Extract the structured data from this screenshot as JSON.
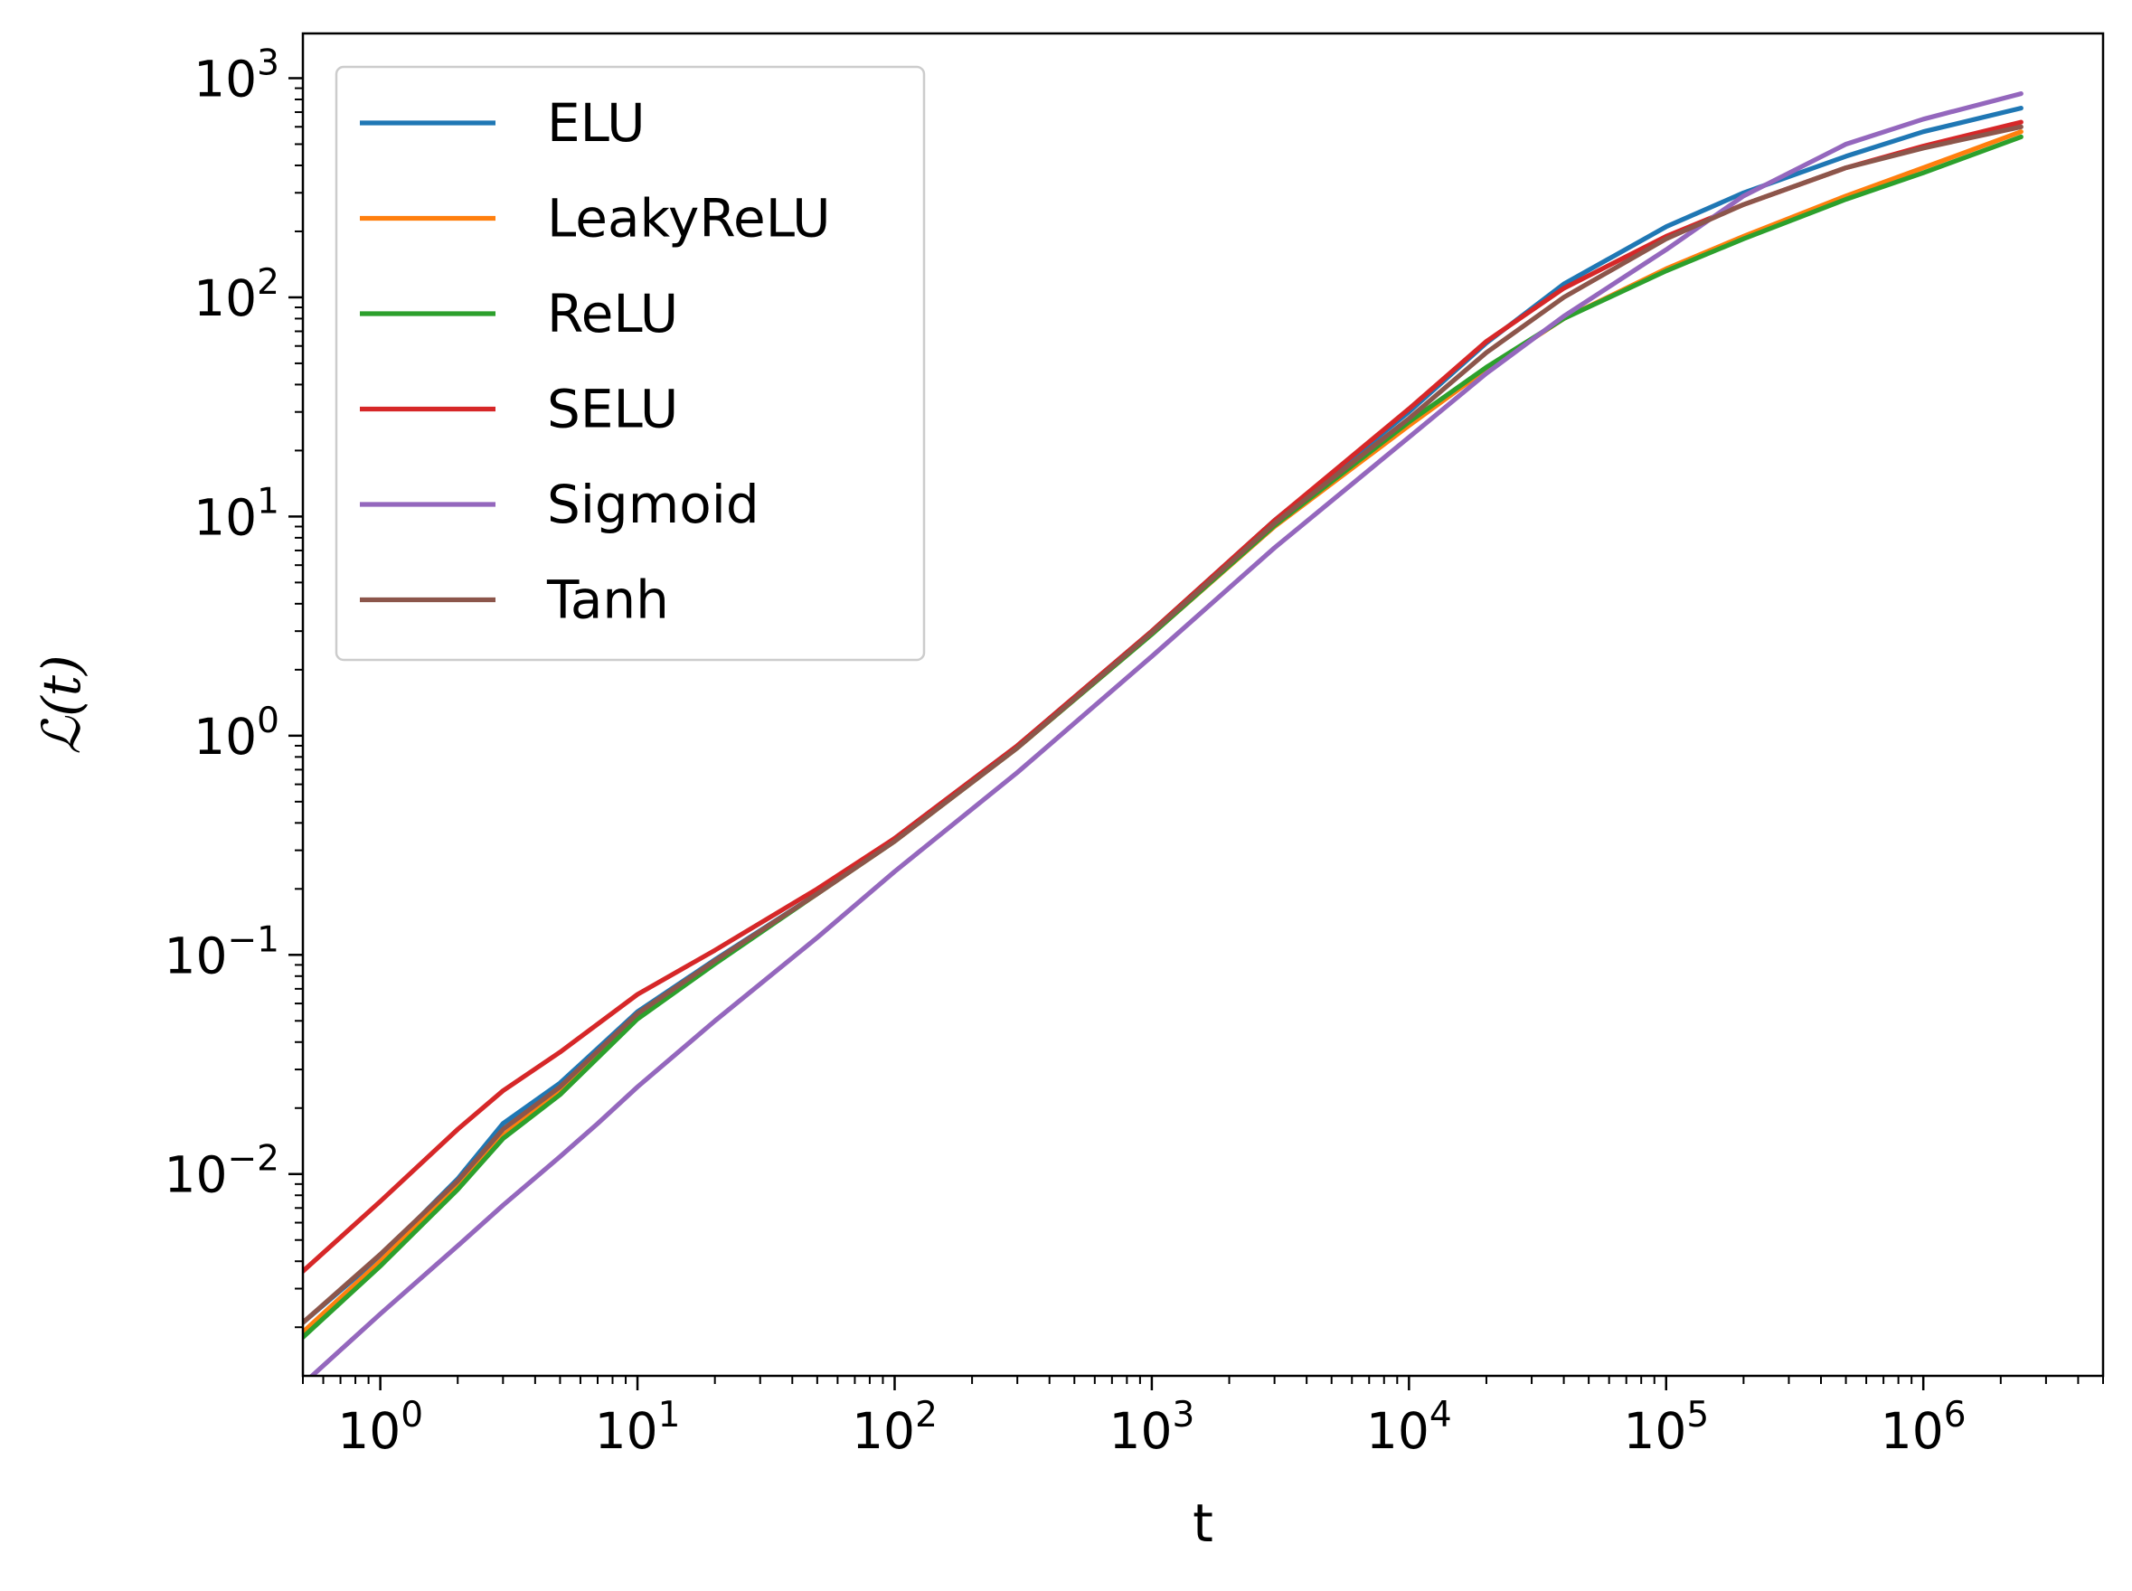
{
  "chart_data": {
    "type": "line",
    "title": "",
    "xlabel": "t",
    "ylabel": "ℒ(t)",
    "xscale": "log",
    "yscale": "log",
    "xlim": [
      0.5,
      5000000
    ],
    "ylim": [
      0.0012,
      1600
    ],
    "grid": false,
    "legend_position": "top-left",
    "x_ticks": [
      {
        "value": 1,
        "base": "10",
        "exp": "0"
      },
      {
        "value": 10,
        "base": "10",
        "exp": "1"
      },
      {
        "value": 100,
        "base": "10",
        "exp": "2"
      },
      {
        "value": 1000,
        "base": "10",
        "exp": "3"
      },
      {
        "value": 10000,
        "base": "10",
        "exp": "4"
      },
      {
        "value": 100000,
        "base": "10",
        "exp": "5"
      },
      {
        "value": 1000000,
        "base": "10",
        "exp": "6"
      }
    ],
    "y_ticks": [
      {
        "value": 0.01,
        "base": "10",
        "exp": "−2"
      },
      {
        "value": 0.1,
        "base": "10",
        "exp": "−1"
      },
      {
        "value": 1,
        "base": "10",
        "exp": "0"
      },
      {
        "value": 10,
        "base": "10",
        "exp": "1"
      },
      {
        "value": 100,
        "base": "10",
        "exp": "2"
      },
      {
        "value": 1000,
        "base": "10",
        "exp": "3"
      }
    ],
    "series": [
      {
        "name": "ELU",
        "color": "#1f77b4",
        "x": [
          0.5,
          1,
          2,
          3,
          5,
          10,
          20,
          50,
          100,
          300,
          1000,
          3000,
          10000,
          20000,
          40000,
          100000,
          200000,
          500000,
          1000000,
          2400000
        ],
        "y": [
          0.0021,
          0.0042,
          0.0095,
          0.017,
          0.026,
          0.055,
          0.095,
          0.19,
          0.34,
          0.9,
          3.0,
          9.6,
          30,
          62,
          115,
          210,
          300,
          440,
          570,
          730
        ]
      },
      {
        "name": "LeakyReLU",
        "color": "#ff7f0e",
        "x": [
          0.5,
          1,
          2,
          3,
          5,
          10,
          20,
          50,
          100,
          300,
          1000,
          3000,
          10000,
          20000,
          40000,
          100000,
          200000,
          500000,
          1000000,
          2400000
        ],
        "y": [
          0.0019,
          0.004,
          0.0088,
          0.015,
          0.024,
          0.052,
          0.092,
          0.19,
          0.33,
          0.88,
          2.9,
          9.0,
          26,
          47,
          80,
          135,
          190,
          290,
          390,
          570
        ]
      },
      {
        "name": "ReLU",
        "color": "#2ca02c",
        "x": [
          0.5,
          1,
          2,
          3,
          5,
          10,
          20,
          50,
          100,
          300,
          1000,
          3000,
          10000,
          20000,
          40000,
          100000,
          200000,
          500000,
          1000000,
          2400000
        ],
        "y": [
          0.0018,
          0.0038,
          0.0085,
          0.0145,
          0.023,
          0.051,
          0.091,
          0.19,
          0.33,
          0.88,
          2.9,
          9.1,
          27,
          48,
          80,
          132,
          185,
          280,
          370,
          540
        ]
      },
      {
        "name": "SELU",
        "color": "#d62728",
        "x": [
          0.5,
          1,
          2,
          3,
          5,
          10,
          20,
          50,
          100,
          300,
          1000,
          3000,
          10000,
          20000,
          40000,
          100000,
          200000,
          500000,
          1000000,
          2400000
        ],
        "y": [
          0.0036,
          0.0075,
          0.016,
          0.024,
          0.036,
          0.066,
          0.105,
          0.2,
          0.34,
          0.9,
          3.0,
          9.6,
          31,
          63,
          110,
          190,
          265,
          390,
          490,
          630
        ]
      },
      {
        "name": "Sigmoid",
        "color": "#9467bd",
        "x": [
          0.5,
          1,
          2,
          3,
          5,
          7,
          10,
          20,
          50,
          100,
          300,
          1000,
          3000,
          10000,
          20000,
          40000,
          100000,
          200000,
          500000,
          1000000,
          2400000
        ],
        "y": [
          0.0011,
          0.0023,
          0.0047,
          0.0072,
          0.012,
          0.017,
          0.025,
          0.05,
          0.12,
          0.24,
          0.68,
          2.3,
          7.2,
          23,
          45,
          82,
          165,
          290,
          500,
          650,
          850
        ]
      },
      {
        "name": "Tanh",
        "color": "#8c564b",
        "x": [
          0.5,
          1,
          2,
          3,
          5,
          10,
          20,
          50,
          100,
          300,
          1000,
          3000,
          10000,
          20000,
          40000,
          100000,
          200000,
          500000,
          1000000,
          2400000
        ],
        "y": [
          0.0021,
          0.0043,
          0.0093,
          0.016,
          0.025,
          0.054,
          0.094,
          0.19,
          0.33,
          0.88,
          2.95,
          9.3,
          28,
          56,
          100,
          185,
          265,
          390,
          480,
          600
        ]
      }
    ]
  }
}
